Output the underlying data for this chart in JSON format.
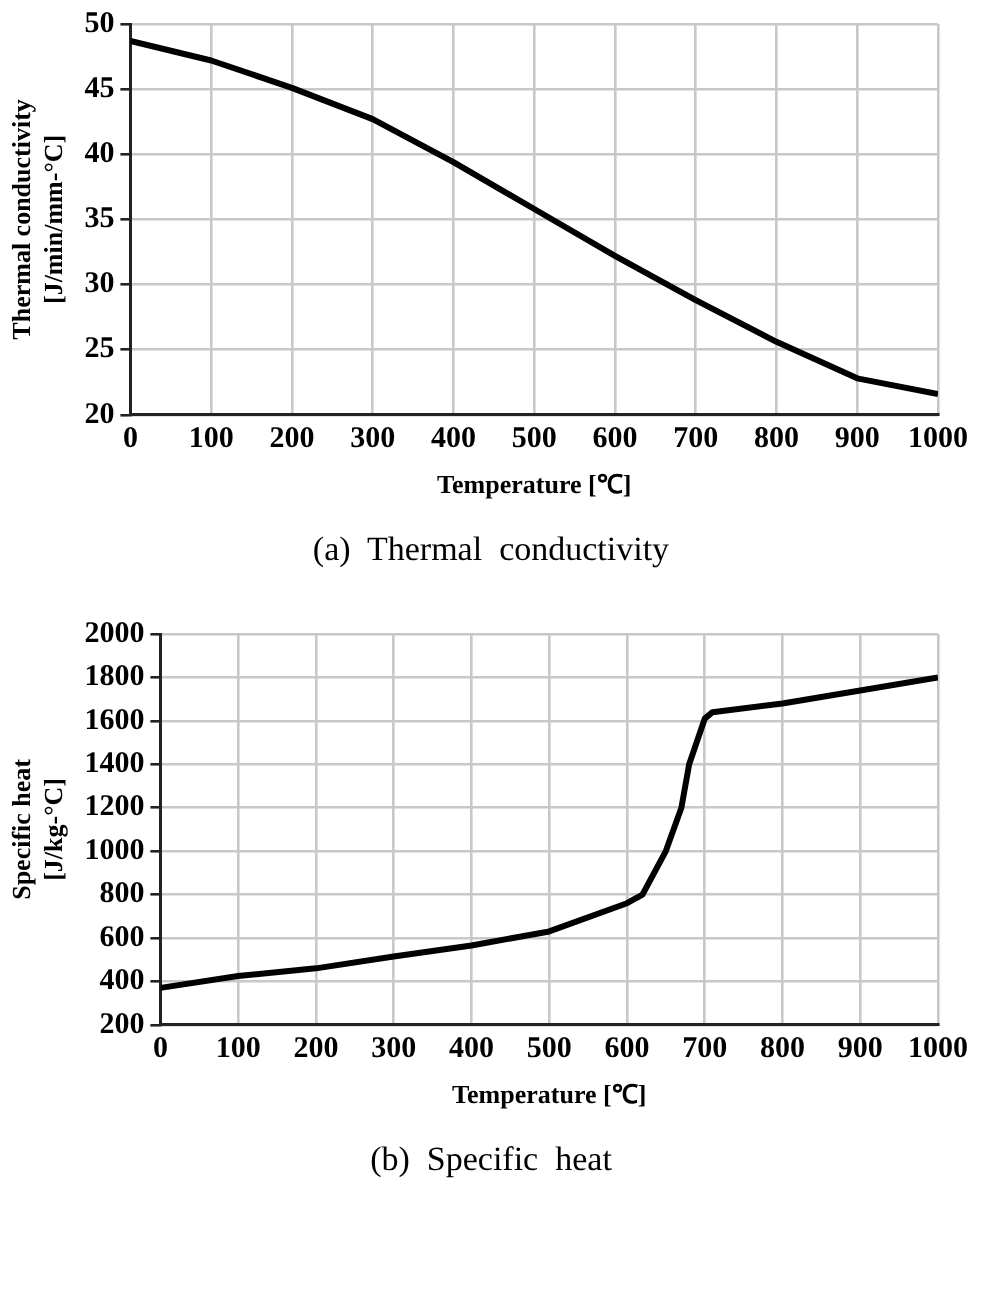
{
  "chart_data": [
    {
      "type": "line",
      "xlabel": "Temperature [℃]",
      "ylabel": "Thermal conductivity\n[J/min/mm-°C]",
      "annotations": [
        "(a)  Thermal  conductivity"
      ],
      "x": [
        0,
        100,
        200,
        300,
        400,
        500,
        600,
        700,
        800,
        900,
        1000
      ],
      "series": [
        {
          "color": "#000000",
          "values": [
            48.7,
            47.2,
            45.1,
            42.7,
            39.4,
            35.8,
            32.2,
            28.8,
            25.6,
            22.8,
            21.6
          ]
        }
      ],
      "xlim": [
        0,
        1000
      ],
      "xticks": [
        0,
        100,
        200,
        300,
        400,
        500,
        600,
        700,
        800,
        900,
        1000
      ],
      "ylim": [
        20,
        50
      ],
      "yticks": [
        20,
        25,
        30,
        35,
        40,
        45,
        50
      ],
      "grid": true,
      "marker": "none",
      "line_style": "solid"
    },
    {
      "type": "line",
      "xlabel": "Temperature [℃]",
      "ylabel": "Specific heat\n[J/kg-°C]",
      "annotations": [
        "(b)  Specific  heat"
      ],
      "x": [
        0,
        100,
        200,
        300,
        400,
        500,
        600,
        620,
        650,
        670,
        680,
        700,
        710,
        800,
        900,
        1000
      ],
      "series": [
        {
          "color": "#000000",
          "values": [
            370,
            425,
            460,
            515,
            565,
            630,
            760,
            800,
            1000,
            1200,
            1400,
            1610,
            1640,
            1680,
            1740,
            1800
          ]
        }
      ],
      "xlim": [
        0,
        1000
      ],
      "xticks": [
        0,
        100,
        200,
        300,
        400,
        500,
        600,
        700,
        800,
        900,
        1000
      ],
      "ylim": [
        200,
        2000
      ],
      "yticks": [
        200,
        400,
        600,
        800,
        1000,
        1200,
        1400,
        1600,
        1800,
        2000
      ],
      "grid": true,
      "marker": "none",
      "line_style": "solid"
    }
  ]
}
